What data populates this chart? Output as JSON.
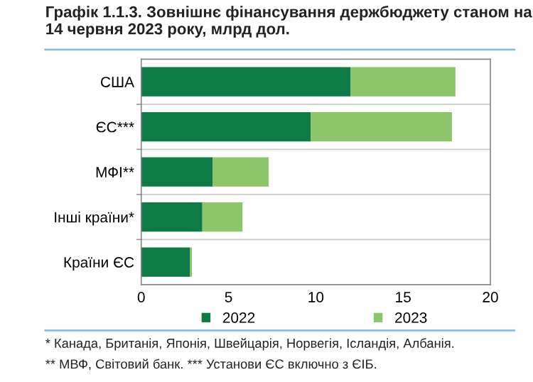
{
  "chart_data": {
    "type": "bar",
    "orientation": "horizontal",
    "stacked": true,
    "title": "Графік 1.1.3. Зовнішнє фінансування держбюджету станом на 14 червня 2023 року, млрд дол.",
    "categories": [
      "США",
      "ЄС***",
      "МФІ**",
      "Інші країни*",
      "Країни ЄС"
    ],
    "series": [
      {
        "name": "2022",
        "color": "#0e7a45",
        "values": [
          12.0,
          9.7,
          4.1,
          3.5,
          2.8
        ]
      },
      {
        "name": "2023",
        "color": "#8cc56a",
        "values": [
          6.0,
          8.1,
          3.2,
          2.3,
          0.1
        ]
      }
    ],
    "xlim": [
      0,
      20
    ],
    "xticks": [
      0,
      5,
      10,
      15,
      20
    ],
    "grid": "y",
    "legend": "bottom",
    "annotations": [
      "* Канада, Британія, Японія, Швейцарія, Норвегія, Ісландія, Албанія.",
      "** МВФ, Світовий банк. *** Установи ЄС включно з ЄІБ."
    ]
  }
}
